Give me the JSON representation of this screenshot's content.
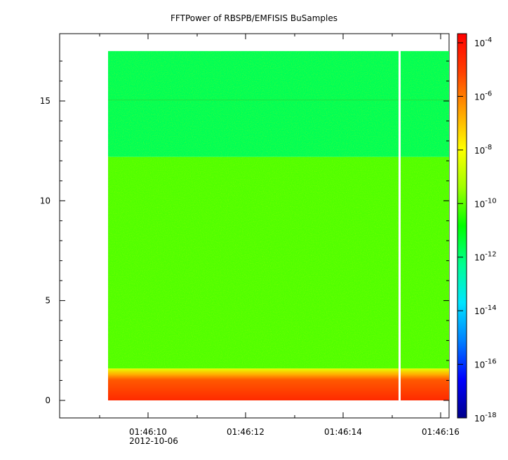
{
  "chart_data": {
    "type": "heatmap",
    "title": "FFTPower of RBSPB/EMFISIS  BuSamples",
    "xlabel": "",
    "ylabel": "",
    "date_label": "2012-10-06",
    "x_ticks": [
      "01:46:10",
      "01:46:12",
      "01:46:14",
      "01:46:16"
    ],
    "y_ticks": [
      "0",
      "5",
      "10",
      "15"
    ],
    "ylim": [
      -1,
      18.5
    ],
    "colorbar": {
      "scale": "log",
      "range": [
        1e-18,
        0.0003
      ],
      "ticks": [
        {
          "base": "10",
          "exp": "-4"
        },
        {
          "base": "10",
          "exp": "-6"
        },
        {
          "base": "10",
          "exp": "-8"
        },
        {
          "base": "10",
          "exp": "-10"
        },
        {
          "base": "10",
          "exp": "-12"
        },
        {
          "base": "10",
          "exp": "-14"
        },
        {
          "base": "10",
          "exp": "-16"
        },
        {
          "base": "10",
          "exp": "-18"
        }
      ],
      "colors": [
        "#00008b",
        "#0000ff",
        "#0080ff",
        "#00e5ff",
        "#00ff90",
        "#00ff00",
        "#a0ff00",
        "#ffff00",
        "#ffa000",
        "#ff4000",
        "#ff0000"
      ]
    },
    "bands": [
      {
        "y_range": [
          0,
          1.2
        ],
        "power": "1e-6",
        "color": "#ff3a00"
      },
      {
        "y_range": [
          1.2,
          1.6
        ],
        "power": "1e-8",
        "color": "#ffc000"
      },
      {
        "y_range": [
          1.6,
          12.2
        ],
        "power": "1e-11",
        "color": "#50ff00"
      },
      {
        "y_range": [
          12.2,
          17.5
        ],
        "power": "1e-12",
        "color": "#00ff55"
      }
    ],
    "data_gap": "01:46:15.1"
  }
}
